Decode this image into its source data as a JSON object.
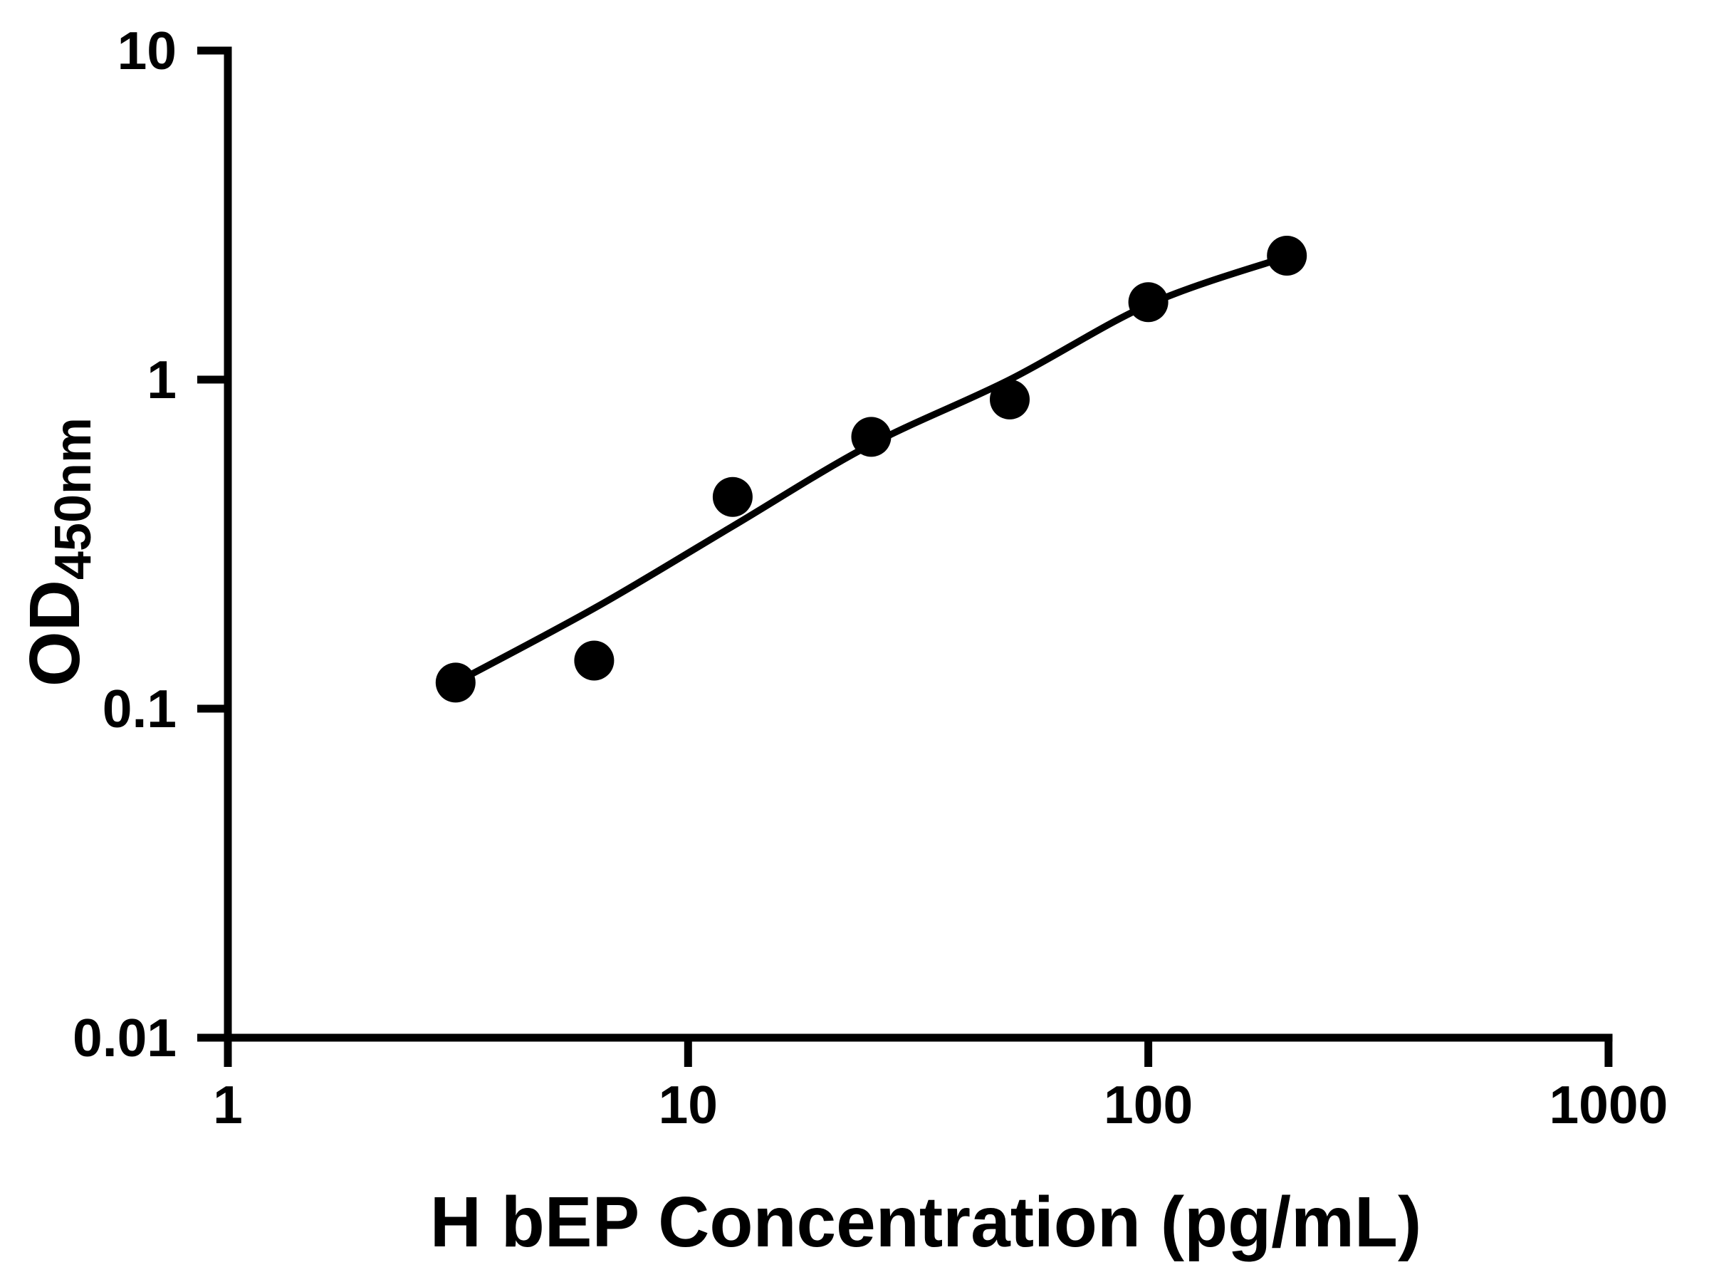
{
  "chart_data": {
    "type": "scatter",
    "title": "",
    "xlabel": "H bEP Concentration (pg/mL)",
    "ylabel": {
      "main": "OD",
      "sub": "450nm"
    },
    "x_scale": "log",
    "y_scale": "log",
    "xlim": [
      1,
      1000
    ],
    "ylim": [
      0.01,
      10
    ],
    "grid": false,
    "legend": "none",
    "colors": {
      "ink": "#000000",
      "background": "#ffffff"
    },
    "x_ticks": [
      {
        "v": 1,
        "label": "1"
      },
      {
        "v": 10,
        "label": "10"
      },
      {
        "v": 100,
        "label": "100"
      },
      {
        "v": 1000,
        "label": "1000"
      }
    ],
    "y_ticks": [
      {
        "v": 10,
        "label": "10"
      },
      {
        "v": 1,
        "label": "1"
      },
      {
        "v": 0.1,
        "label": "0.1"
      },
      {
        "v": 0.01,
        "label": "0.01"
      }
    ],
    "series": [
      {
        "name": "standard-points",
        "type": "scatter",
        "marker": "circle",
        "color": "#000000",
        "points": [
          [
            3.125,
            0.12
          ],
          [
            6.25,
            0.14
          ],
          [
            12.5,
            0.44
          ],
          [
            25,
            0.67
          ],
          [
            50,
            0.87
          ],
          [
            100,
            1.72
          ],
          [
            200,
            2.38
          ]
        ]
      },
      {
        "name": "fit-curve",
        "type": "line",
        "color": "#000000",
        "points": [
          [
            3.125,
            0.12
          ],
          [
            6.3,
            0.203
          ],
          [
            12.4,
            0.356
          ],
          [
            24.7,
            0.63
          ],
          [
            50,
            1.0
          ],
          [
            101,
            1.7
          ],
          [
            203,
            2.38
          ]
        ]
      }
    ]
  }
}
